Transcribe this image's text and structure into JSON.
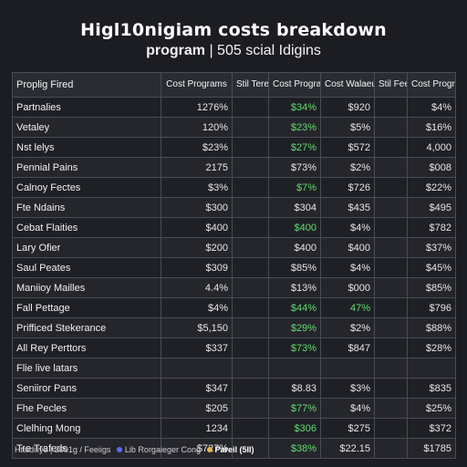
{
  "header": {
    "title": "Higl10nigiam costs breakdown",
    "subtitle_bold": "program",
    "subtitle_rest": " | 505 scial Idigins"
  },
  "table": {
    "columns": [
      "Proplig Fired",
      "Cost Programs",
      "Stil Teres",
      "Cost Programs",
      "Cost Walaeus",
      "Stil Feets",
      "Cost Programs"
    ],
    "rows": [
      {
        "label": "Partnalies",
        "values": [
          "1276%",
          "",
          "$34%",
          "$920",
          "",
          "$4%"
        ],
        "green": [
          false,
          false,
          true,
          false,
          false,
          false
        ]
      },
      {
        "label": "Vetaley",
        "values": [
          "120%",
          "",
          "$23%",
          "$5%",
          "",
          "$16%"
        ],
        "green": [
          false,
          false,
          true,
          false,
          false,
          false
        ]
      },
      {
        "label": "Nst lelys",
        "values": [
          "$23%",
          "",
          "$27%",
          "$572",
          "",
          "4,000"
        ],
        "green": [
          false,
          false,
          true,
          false,
          false,
          false
        ]
      },
      {
        "label": "Pennial Pains",
        "values": [
          "2175",
          "",
          "$73%",
          "$2%",
          "",
          "$008"
        ],
        "green": [
          false,
          false,
          false,
          false,
          false,
          false
        ]
      },
      {
        "label": "Calnoy Fectes",
        "values": [
          "$3%",
          "",
          "$7%",
          "$726",
          "",
          "$22%"
        ],
        "green": [
          false,
          false,
          true,
          false,
          false,
          false
        ]
      },
      {
        "label": "Fte Ndains",
        "values": [
          "$300",
          "",
          "$304",
          "$435",
          "",
          "$495"
        ],
        "green": [
          false,
          false,
          false,
          false,
          false,
          false
        ]
      },
      {
        "label": "Cebat Flaities",
        "values": [
          "$400",
          "",
          "$400",
          "$4%",
          "",
          "$782"
        ],
        "green": [
          false,
          false,
          true,
          false,
          false,
          false
        ]
      },
      {
        "label": "Lary Ofier",
        "values": [
          "$200",
          "",
          "$400",
          "$400",
          "",
          "$37%"
        ],
        "green": [
          false,
          false,
          false,
          false,
          false,
          false
        ]
      },
      {
        "label": "Saul Peates",
        "values": [
          "$309",
          "",
          "$85%",
          "$4%",
          "",
          "$45%"
        ],
        "green": [
          false,
          false,
          false,
          false,
          false,
          false
        ]
      },
      {
        "label": "Maniioy Mailles",
        "values": [
          "4.4%",
          "",
          "$13%",
          "$000",
          "",
          "$85%"
        ],
        "green": [
          false,
          false,
          false,
          false,
          false,
          false
        ]
      },
      {
        "label": "Fall Pettage",
        "values": [
          "$4%",
          "",
          "$44%",
          "47%",
          "",
          "$796"
        ],
        "green": [
          false,
          false,
          true,
          true,
          false,
          false
        ]
      },
      {
        "label": "Prifficed Stekerance",
        "values": [
          "$5,150",
          "",
          "$29%",
          "$2%",
          "",
          "$88%"
        ],
        "green": [
          false,
          false,
          true,
          false,
          false,
          false
        ]
      },
      {
        "label": "All Rey Perttors",
        "values": [
          "$337",
          "",
          "$73%",
          "$847",
          "",
          "$28%"
        ],
        "green": [
          false,
          false,
          true,
          false,
          false,
          false
        ]
      },
      {
        "label": "Flie live latars",
        "values": [
          "",
          "",
          "",
          "",
          "",
          ""
        ],
        "green": [
          false,
          false,
          false,
          false,
          false,
          false
        ]
      },
      {
        "label": "Seniiror Pans",
        "values": [
          "$347",
          "",
          "$8.83",
          "$3%",
          "",
          "$835"
        ],
        "green": [
          false,
          false,
          false,
          false,
          false,
          false
        ]
      },
      {
        "label": "Fhe Pecles",
        "values": [
          "$205",
          "",
          "$77%",
          "$4%",
          "",
          "$25%"
        ],
        "green": [
          false,
          false,
          true,
          false,
          false,
          false
        ]
      },
      {
        "label": "Clelhing Mong",
        "values": [
          "1234",
          "",
          "$306",
          "$275",
          "",
          "$372"
        ],
        "green": [
          false,
          false,
          true,
          false,
          false,
          false
        ]
      },
      {
        "label": "Tre Trafeds",
        "values": [
          "$727%",
          "",
          "$38%",
          "$22.15",
          "",
          "$1785"
        ],
        "green": [
          false,
          false,
          true,
          false,
          false,
          false
        ]
      }
    ]
  },
  "footer": {
    "left": "Htaidiliye | 2001g / Feeiigs",
    "mid": "Lib Rorgaieger Cong",
    "right": "Pareil (5II)",
    "dot1_color": "#5a6cff",
    "dot2_color": "#e0b84a"
  }
}
